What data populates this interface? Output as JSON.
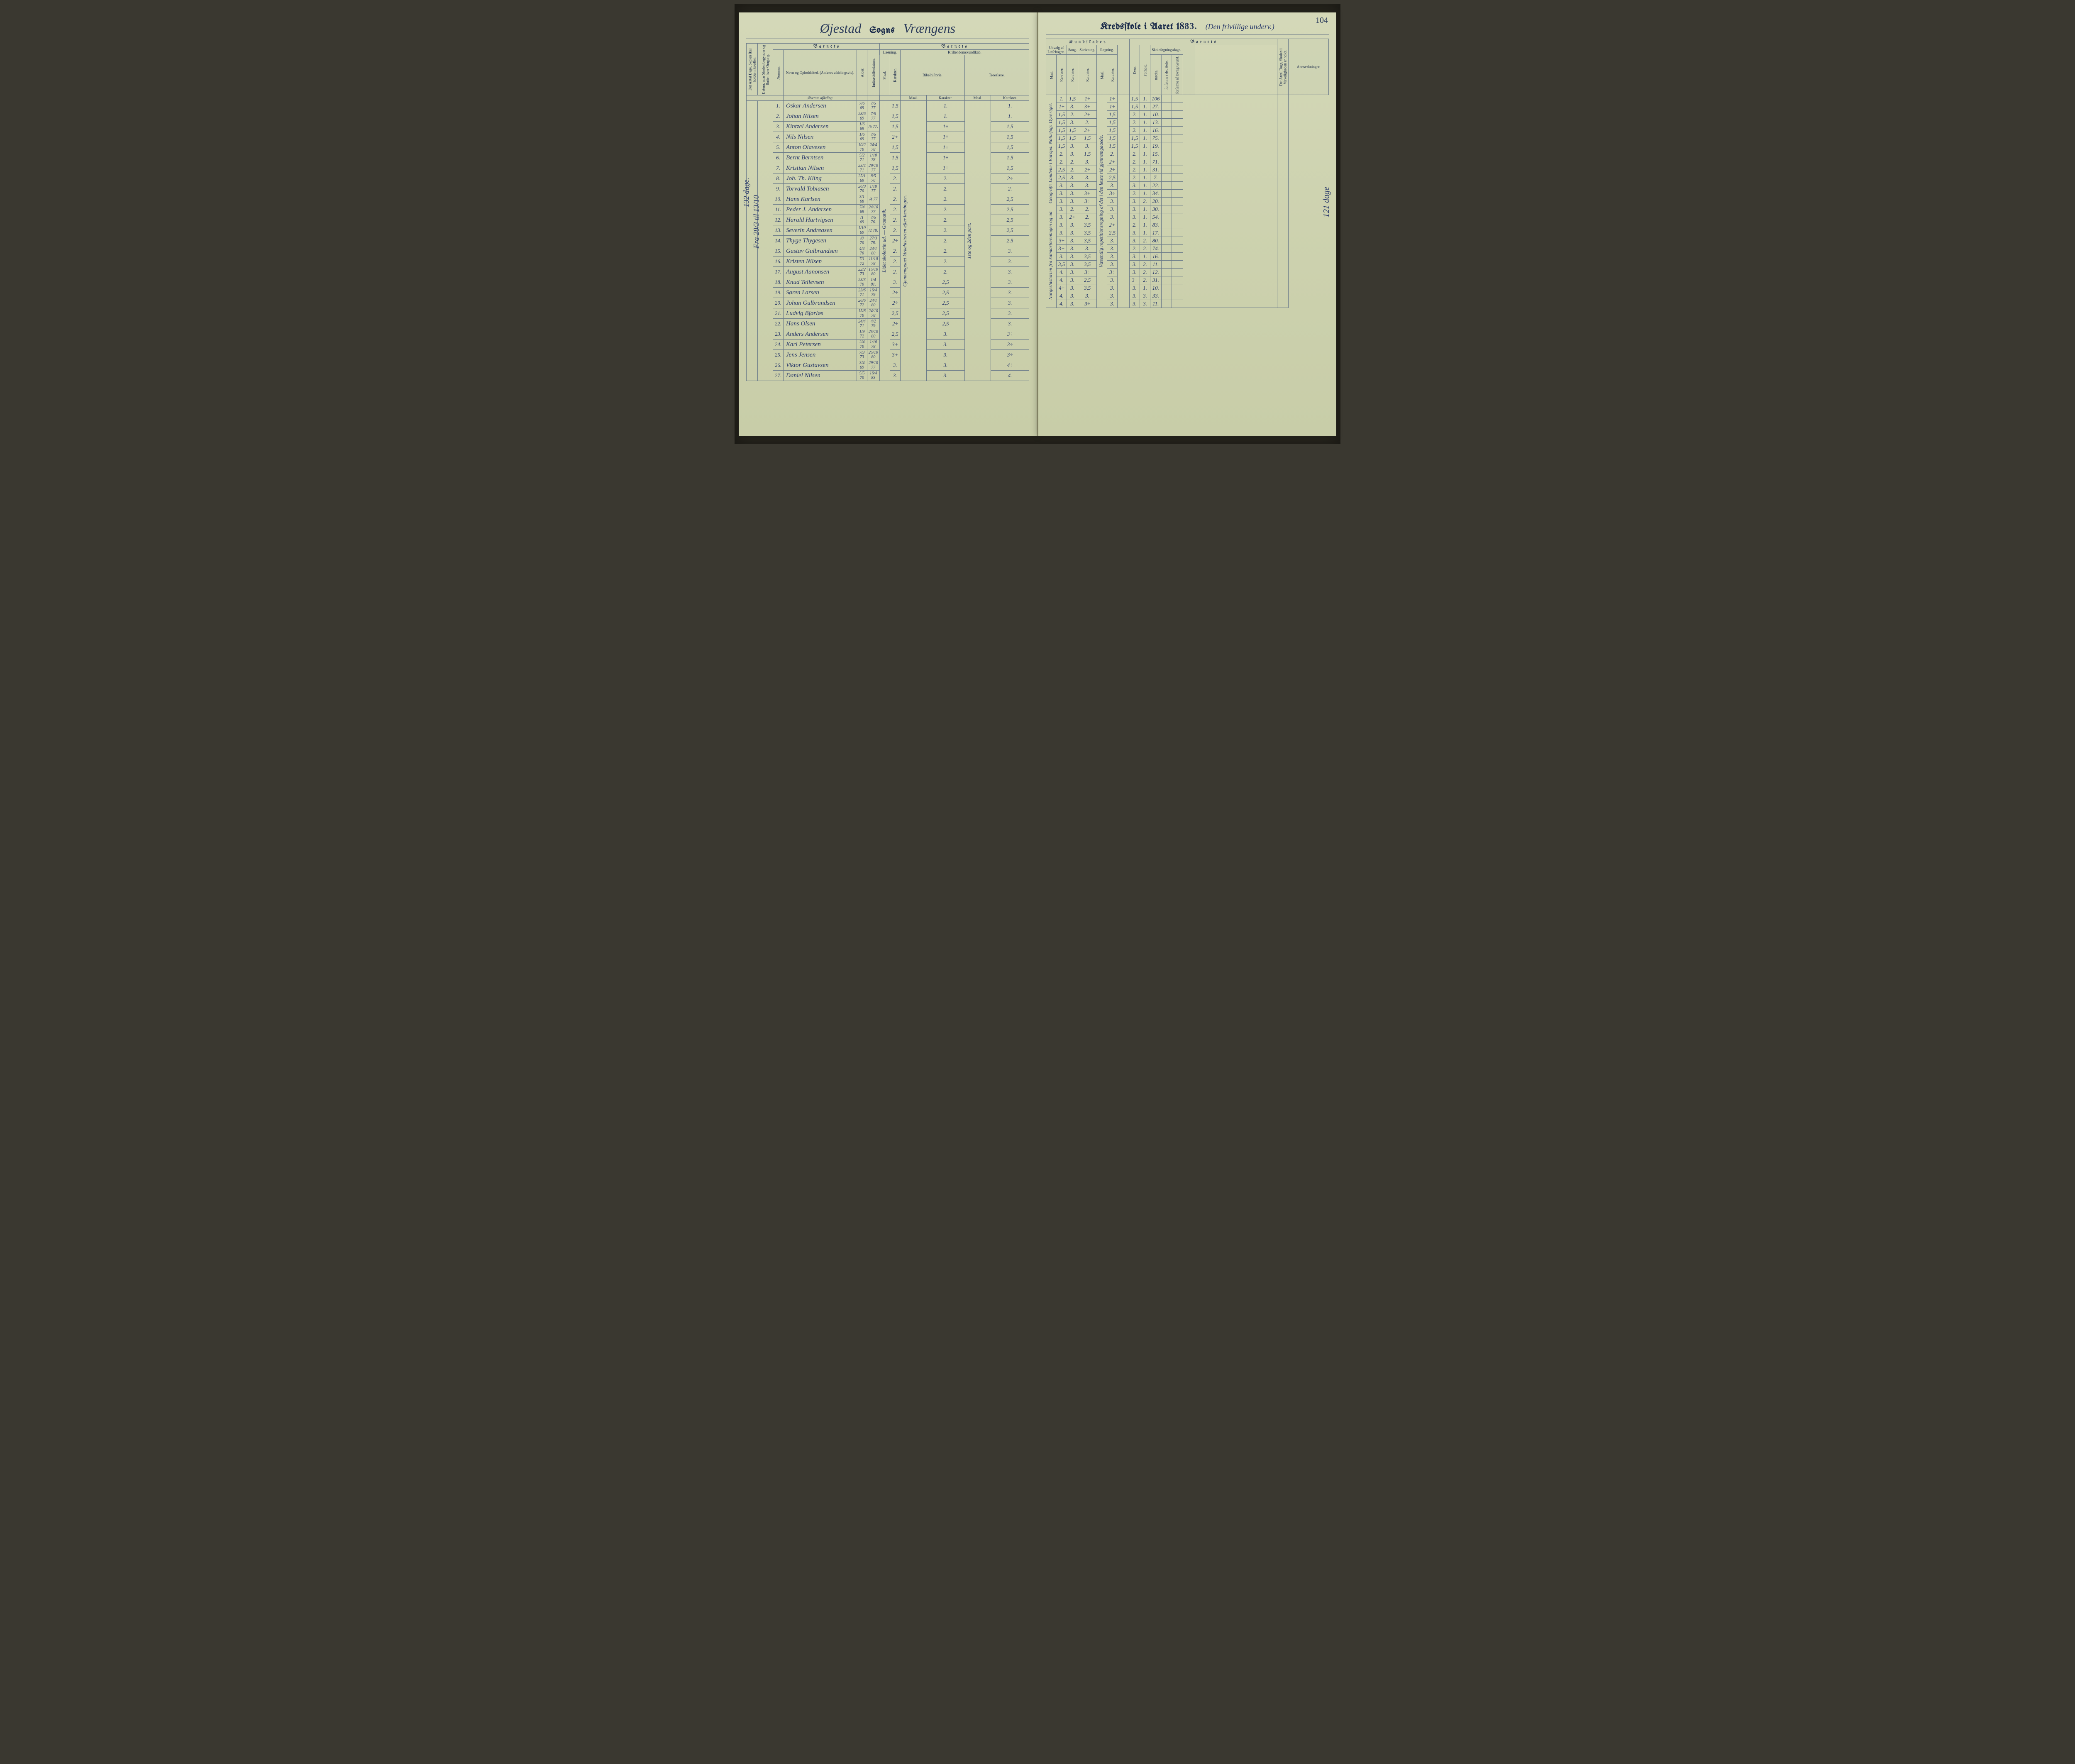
{
  "page_number": "104",
  "left_header": {
    "parish": "Øjestad",
    "sogns": "Sogns",
    "district": "Vrængens"
  },
  "right_header": {
    "title_prefix": "Kredsſkole i Aaret 18",
    "year_suffix": "83.",
    "note": "(Den frivillige underv.)"
  },
  "barnets_label": "B a r n e t s",
  "kundskaber_label": "K u n d ſ k a b e r.",
  "left_col_headers": {
    "v1": "Det Antal Dage, Skolen ſkal holdes i Kredſen.",
    "v2": "Datum, naar Skolen begynder og ſlutter hver Omgang.",
    "nummer": "Nummer.",
    "navn": "Navn og Opholdsſted. (Anføres afdelingsvis).",
    "alder": "Alder.",
    "indtr": "Indtrædelſesdatum.",
    "laesning": "Læsning.",
    "krist": "Kriſtendomskundſkab.",
    "bibel": "Bibelhiſtorie.",
    "troes": "Troeslære.",
    "maal": "Maal.",
    "karakter": "Karakter."
  },
  "right_col_headers": {
    "udvalg": "Udvalg af Læſebogen.",
    "sang": "Sang.",
    "skriv": "Skrivning.",
    "regning": "Regning.",
    "skoledage": "Skoleſøgningsdage.",
    "evne": "Evne.",
    "forhold": "Forhold.",
    "modte": "mødte.",
    "fors1": "forſømte i det Hele.",
    "fors2": "forſømte af lovlig Grund.",
    "v_days": "Det Antal Dage, Skolen i Virkeligheden er holdt.",
    "anm": "Anmærkninger."
  },
  "section_label": "Øverste afdeling",
  "margin_left_1": "132 dage.",
  "margin_left_2": "Fra 28/3 til 13/10",
  "margin_right": "121 dage",
  "vertical_notes": {
    "left_laes": "Lidet skoletrin ud. — Gramatik.",
    "left_bibel": "Gjennemgaaet kirkehistorien efter lærebogen.",
    "left_troes": "1ste og 2den part.",
    "right_udvalg": "Norgeshistorien fra kalmarforeningen og ud. — Geografi: Landene i Europa. Naturfag: Dyreriget.",
    "right_regn": "Væsentlig repetitionsregning af det i den læste tid gjennemgaaede."
  },
  "rows": [
    {
      "n": "1.",
      "name": "Oskar Andersen",
      "ald": "7/6 69",
      "ind": "7/5 77",
      "l_m": "1,5",
      "b_k": "1.",
      "t_k": "1.",
      "u_k": "1.",
      "sa": "1,5",
      "sk": "1÷",
      "re_k": "1÷",
      "ev": "1,5",
      "fo": "1.",
      "mo": "106"
    },
    {
      "n": "2.",
      "name": "Johan Nilsen",
      "ald": "28/6 69",
      "ind": "7/5 77",
      "l_m": "1,5",
      "b_k": "1.",
      "t_k": "1.",
      "u_k": "1÷",
      "sa": "3.",
      "sk": "3+",
      "re_k": "1÷",
      "ev": "1,5",
      "fo": "1.",
      "mo": "27."
    },
    {
      "n": "3.",
      "name": "Kintzel Andersen",
      "ald": "1/6 69",
      "ind": "/5 77.",
      "l_m": "1,5",
      "b_k": "1÷",
      "t_k": "1,5",
      "u_k": "1,5",
      "sa": "2.",
      "sk": "2+",
      "re_k": "1,5",
      "ev": "2.",
      "fo": "1.",
      "mo": "10."
    },
    {
      "n": "4.",
      "name": "Nils Nilsen",
      "ald": "1/6 69",
      "ind": "7/5 77",
      "l_m": "2+",
      "b_k": "1÷",
      "t_k": "1,5",
      "u_k": "1,5",
      "sa": "3.",
      "sk": "2.",
      "re_k": "1,5",
      "ev": "2.",
      "fo": "1.",
      "mo": "13."
    },
    {
      "n": "5.",
      "name": "Anton Olavesen",
      "ald": "10/2 70",
      "ind": "24/4 78",
      "l_m": "1,5",
      "b_k": "1÷",
      "t_k": "1,5",
      "u_k": "1,5",
      "sa": "1,5",
      "sk": "2+",
      "re_k": "1,5",
      "ev": "2.",
      "fo": "1.",
      "mo": "16."
    },
    {
      "n": "6.",
      "name": "Bernt Berntsen",
      "ald": "5/2 71",
      "ind": "1/10 78",
      "l_m": "1,5",
      "b_k": "1÷",
      "t_k": "1,5",
      "u_k": "1,5",
      "sa": "1,5",
      "sk": "1,5",
      "re_k": "1,5",
      "ev": "1,5",
      "fo": "1.",
      "mo": "75."
    },
    {
      "n": "7.",
      "name": "Kristian Nilsen",
      "ald": "25/4 71",
      "ind": "29/10 77",
      "l_m": "1,5",
      "b_k": "1÷",
      "t_k": "1,5",
      "u_k": "1,5",
      "sa": "3.",
      "sk": "3.",
      "re_k": "1,5",
      "ev": "1,5",
      "fo": "1.",
      "mo": "19."
    },
    {
      "n": "8.",
      "name": "Joh. Th. Kling",
      "ald": "25/1 69",
      "ind": "8/5 76",
      "l_m": "2.",
      "b_k": "2.",
      "t_k": "2÷",
      "u_k": "2.",
      "sa": "3.",
      "sk": "1,5",
      "re_k": "2.",
      "ev": "2.",
      "fo": "1.",
      "mo": "15."
    },
    {
      "n": "9.",
      "name": "Torvald Tobiasen",
      "ald": "26/9 70",
      "ind": "1/10 77",
      "l_m": "2.",
      "b_k": "2.",
      "t_k": "2.",
      "u_k": "2.",
      "sa": "2.",
      "sk": "3.",
      "re_k": "2+",
      "ev": "2.",
      "fo": "1.",
      "mo": "71."
    },
    {
      "n": "10.",
      "name": "Hans Karlsen",
      "ald": "3/1 68",
      "ind": "/4 77",
      "l_m": "2.",
      "b_k": "2.",
      "t_k": "2,5",
      "u_k": "2,5",
      "sa": "2.",
      "sk": "2÷",
      "re_k": "2÷",
      "ev": "2.",
      "fo": "1.",
      "mo": "31."
    },
    {
      "n": "11.",
      "name": "Peder J. Andersen",
      "ald": "7/4 69",
      "ind": "24/10 77",
      "l_m": "2.",
      "b_k": "2.",
      "t_k": "2,5",
      "u_k": "2,5",
      "sa": "3.",
      "sk": "3.",
      "re_k": "2,5",
      "ev": "2.",
      "fo": "1.",
      "mo": "7."
    },
    {
      "n": "12.",
      "name": "Harald Hartvigsen",
      "ald": "/1 69",
      "ind": "7/5 76.",
      "l_m": "2.",
      "b_k": "2.",
      "t_k": "2,5",
      "u_k": "3.",
      "sa": "3.",
      "sk": "3.",
      "re_k": "3.",
      "ev": "3.",
      "fo": "1.",
      "mo": "22."
    },
    {
      "n": "13.",
      "name": "Severin Andreasen",
      "ald": "1/10 69",
      "ind": "/2 78.",
      "l_m": "2.",
      "b_k": "2.",
      "t_k": "2,5",
      "u_k": "3.",
      "sa": "3.",
      "sk": "3+",
      "re_k": "3÷",
      "ev": "2.",
      "fo": "1.",
      "mo": "34."
    },
    {
      "n": "14.",
      "name": "Thyge Thygesen",
      "ald": "/8 70",
      "ind": "27/3 78.",
      "l_m": "2÷",
      "b_k": "2.",
      "t_k": "2,5",
      "u_k": "3.",
      "sa": "3.",
      "sk": "3÷",
      "re_k": "3.",
      "ev": "3.",
      "fo": "2.",
      "mo": "20."
    },
    {
      "n": "15.",
      "name": "Gustav Gulbrandsen",
      "ald": "4/4 70",
      "ind": "24/1 80",
      "l_m": "2.",
      "b_k": "2.",
      "t_k": "3.",
      "u_k": "3.",
      "sa": "2.",
      "sk": "2.",
      "re_k": "3.",
      "ev": "3.",
      "fo": "1.",
      "mo": "30."
    },
    {
      "n": "16.",
      "name": "Kristen Nilsen",
      "ald": "7/1 72",
      "ind": "11/10 78",
      "l_m": "2.",
      "b_k": "2.",
      "t_k": "3.",
      "u_k": "3.",
      "sa": "2+",
      "sk": "2.",
      "re_k": "3.",
      "ev": "3.",
      "fo": "1.",
      "mo": "54."
    },
    {
      "n": "17.",
      "name": "August Aanonsen",
      "ald": "22/2 73",
      "ind": "15/10 80",
      "l_m": "2.",
      "b_k": "2.",
      "t_k": "3.",
      "u_k": "3.",
      "sa": "3.",
      "sk": "3,5",
      "re_k": "2+",
      "ev": "2.",
      "fo": "1.",
      "mo": "83."
    },
    {
      "n": "18.",
      "name": "Knud Tellevsen",
      "ald": "23/3 70",
      "ind": "1/4 81.",
      "l_m": "3.",
      "b_k": "2,5",
      "t_k": "3.",
      "u_k": "3.",
      "sa": "3.",
      "sk": "3,5",
      "re_k": "2,5",
      "ev": "3.",
      "fo": "1.",
      "mo": "17."
    },
    {
      "n": "19.",
      "name": "Søren Larsen",
      "ald": "23/6 71",
      "ind": "16/4 79",
      "l_m": "2÷",
      "b_k": "2,5",
      "t_k": "3.",
      "u_k": "3÷",
      "sa": "3.",
      "sk": "3,5",
      "re_k": "3.",
      "ev": "3.",
      "fo": "2.",
      "mo": "80."
    },
    {
      "n": "20.",
      "name": "Johan Gulbrandsen",
      "ald": "26/6 72",
      "ind": "24/1 80",
      "l_m": "2÷",
      "b_k": "2,5",
      "t_k": "3.",
      "u_k": "3+",
      "sa": "3.",
      "sk": "3.",
      "re_k": "3.",
      "ev": "2.",
      "fo": "2.",
      "mo": "74."
    },
    {
      "n": "21.",
      "name": "Ludvig Bjørløs",
      "ald": "15/8 70",
      "ind": "24/10 78",
      "l_m": "2,5",
      "b_k": "2,5",
      "t_k": "3.",
      "u_k": "3.",
      "sa": "3.",
      "sk": "3,5",
      "re_k": "3.",
      "ev": "3.",
      "fo": "1.",
      "mo": "16."
    },
    {
      "n": "22.",
      "name": "Hans Olsen",
      "ald": "24/4 71",
      "ind": "4/2 79",
      "l_m": "2÷",
      "b_k": "2,5",
      "t_k": "3.",
      "u_k": "3,5",
      "sa": "3.",
      "sk": "3,5",
      "re_k": "3.",
      "ev": "3.",
      "fo": "2.",
      "mo": "11."
    },
    {
      "n": "23.",
      "name": "Anders Andersen",
      "ald": "1/9 72",
      "ind": "25/10 80",
      "l_m": "2,5",
      "b_k": "3.",
      "t_k": "3÷",
      "u_k": "4.",
      "sa": "3.",
      "sk": "3÷",
      "re_k": "3÷",
      "ev": "3.",
      "fo": "2.",
      "mo": "12."
    },
    {
      "n": "24.",
      "name": "Karl Petersen",
      "ald": "2/4 70",
      "ind": "1/10 78",
      "l_m": "3+",
      "b_k": "3.",
      "t_k": "3÷",
      "u_k": "4.",
      "sa": "3.",
      "sk": "2,5",
      "re_k": "3.",
      "ev": "3÷",
      "fo": "2.",
      "mo": "31."
    },
    {
      "n": "25.",
      "name": "Jens Jensen",
      "ald": "7/3 73",
      "ind": "25/10 80",
      "l_m": "3+",
      "b_k": "3.",
      "t_k": "3÷",
      "u_k": "4÷",
      "sa": "3.",
      "sk": "3,5",
      "re_k": "3.",
      "ev": "3.",
      "fo": "1.",
      "mo": "10."
    },
    {
      "n": "26.",
      "name": "Viktor Gustavsen",
      "ald": "3/4 69",
      "ind": "29/10 77",
      "l_m": "3.",
      "b_k": "3.",
      "t_k": "4÷",
      "u_k": "4.",
      "sa": "3.",
      "sk": "3.",
      "re_k": "3.",
      "ev": "3.",
      "fo": "3.",
      "mo": "33."
    },
    {
      "n": "27.",
      "name": "Daniel Nilsen",
      "ald": "5/5 70",
      "ind": "16/4 83",
      "l_m": "3.",
      "b_k": "3.",
      "t_k": "4.",
      "u_k": "4.",
      "sa": "3.",
      "sk": "3÷",
      "re_k": "3.",
      "ev": "3.",
      "fo": "3.",
      "mo": "11."
    }
  ],
  "colors": {
    "paper": "#cdd2af",
    "ink_print": "#1a2a4a",
    "ink_hand": "#2a3a6a",
    "rule": "#6a7a8a"
  }
}
